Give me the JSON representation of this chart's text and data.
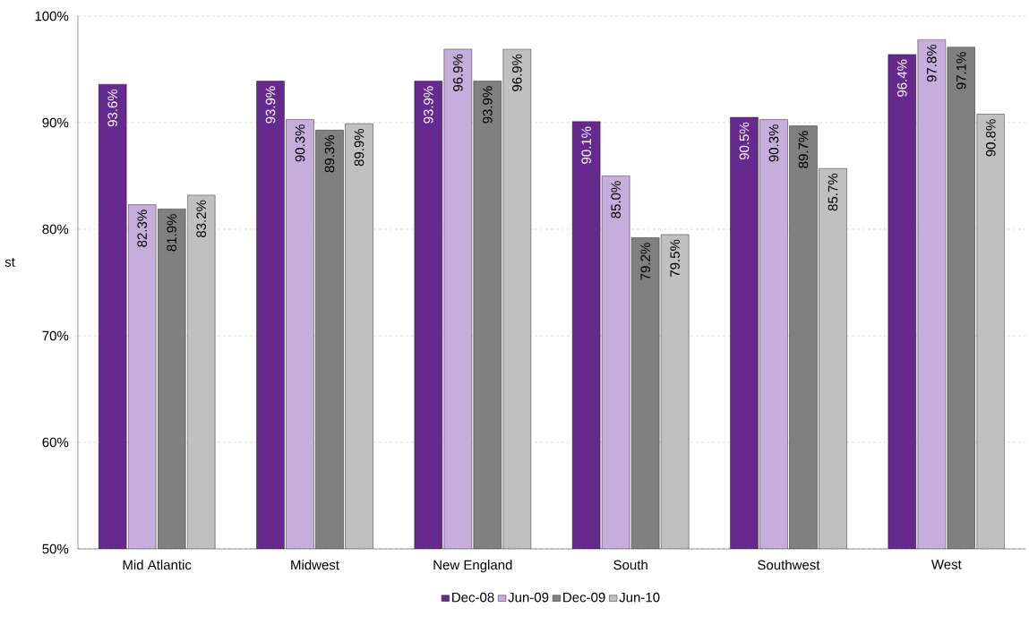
{
  "chart_data": {
    "type": "bar",
    "ylabel": "st",
    "categories": [
      "Mid Atlantic",
      "Midwest",
      "New England",
      "South",
      "Southwest",
      "West"
    ],
    "series": [
      {
        "name": "Dec-08",
        "color": "#662a8f",
        "values": [
          93.6,
          93.9,
          93.9,
          90.1,
          90.5,
          96.4
        ],
        "value_labels": [
          "93.6%",
          "93.9%",
          "93.9%",
          "90.1%",
          "90.5%",
          "96.4%"
        ]
      },
      {
        "name": "Jun-09",
        "color": "#c5aedc",
        "values": [
          82.3,
          90.3,
          96.9,
          85.0,
          90.3,
          97.8
        ],
        "value_labels": [
          "82.3%",
          "90.3%",
          "96.9%",
          "85.0%",
          "90.3%",
          "97.8%"
        ]
      },
      {
        "name": "Dec-09",
        "color": "#808080",
        "values": [
          81.9,
          89.3,
          93.9,
          79.2,
          89.7,
          97.1
        ],
        "value_labels": [
          "81.9%",
          "89.3%",
          "93.9%",
          "79.2%",
          "89.7%",
          "97.1%"
        ]
      },
      {
        "name": "Jun-10",
        "color": "#c0c0c0",
        "values": [
          83.2,
          89.9,
          96.9,
          79.5,
          85.7,
          90.8
        ],
        "value_labels": [
          "83.2%",
          "89.9%",
          "96.9%",
          "79.5%",
          "85.7%",
          "90.8%"
        ]
      }
    ],
    "ylim": [
      50,
      100
    ],
    "yticks": [
      {
        "value": 50,
        "label": "50%"
      },
      {
        "value": 60,
        "label": "60%"
      },
      {
        "value": 70,
        "label": "70%"
      },
      {
        "value": 80,
        "label": "80%"
      },
      {
        "value": 90,
        "label": "90%"
      },
      {
        "value": 100,
        "label": "100%"
      }
    ],
    "grid": "y",
    "legend": "bottom"
  }
}
